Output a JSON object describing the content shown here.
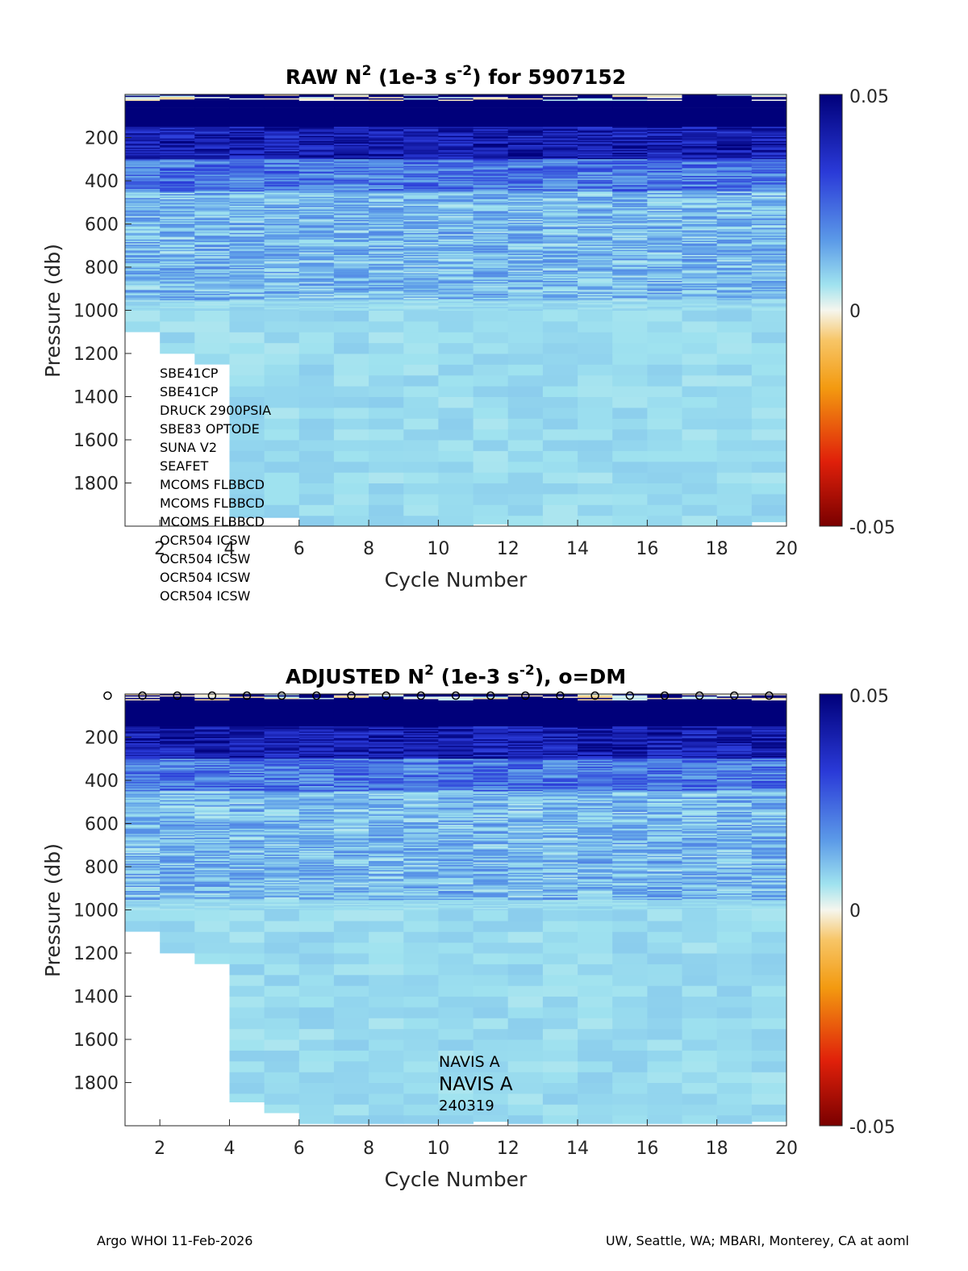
{
  "chart_data": [
    {
      "type": "heatmap",
      "id": "raw",
      "title_parts": [
        "RAW N",
        "2",
        " (1e-3 s",
        "-2",
        ") for 5907152"
      ],
      "xlabel": "Cycle Number",
      "ylabel": "Pressure (db)",
      "xlim": [
        1,
        20
      ],
      "ylim": [
        0,
        2000
      ],
      "x_ticks": [
        2,
        4,
        6,
        8,
        10,
        12,
        14,
        16,
        18,
        20
      ],
      "x_tick_labels": [
        "2",
        "4",
        "6",
        "8",
        "10",
        "12",
        "14",
        "16",
        "18",
        "20"
      ],
      "y_ticks": [
        200,
        400,
        600,
        800,
        1000,
        1200,
        1400,
        1600,
        1800
      ],
      "y_tick_labels": [
        "200",
        "400",
        "600",
        "800",
        "1000",
        "1200",
        "1400",
        "1600",
        "1800"
      ],
      "max_pressure_by_cycle": [
        1100,
        1200,
        1250,
        1960,
        1960,
        2000,
        2000,
        2000,
        2000,
        2000,
        1990,
        2000,
        2000,
        2000,
        2000,
        2000,
        2000,
        2000,
        1980
      ],
      "colorbar": {
        "min": -0.05,
        "max": 0.05,
        "tick_labels": [
          "0.05",
          "0",
          "-0.05"
        ]
      },
      "sensor_list": [
        "SBE41CP",
        "SBE41CP",
        "DRUCK 2900PSIA",
        "SBE83 OPTODE",
        "SUNA V2",
        "SEAFET",
        "MCOMS FLBBCD",
        "MCOMS FLBBCD",
        "MCOMS FLBBCD",
        "OCR504 ICSW",
        "OCR504 ICSW",
        "OCR504 ICSW",
        "OCR504 ICSW"
      ]
    },
    {
      "type": "heatmap",
      "id": "adjusted",
      "title_parts": [
        "ADJUSTED N",
        "2",
        " (1e-3 s",
        "-2",
        "), o=DM"
      ],
      "xlabel": "Cycle Number",
      "ylabel": "Pressure (db)",
      "xlim": [
        1,
        20
      ],
      "ylim": [
        0,
        2000
      ],
      "x_ticks": [
        2,
        4,
        6,
        8,
        10,
        12,
        14,
        16,
        18,
        20
      ],
      "x_tick_labels": [
        "2",
        "4",
        "6",
        "8",
        "10",
        "12",
        "14",
        "16",
        "18",
        "20"
      ],
      "y_ticks": [
        200,
        400,
        600,
        800,
        1000,
        1200,
        1400,
        1600,
        1800
      ],
      "y_tick_labels": [
        "200",
        "400",
        "600",
        "800",
        "1000",
        "1200",
        "1400",
        "1600",
        "1800"
      ],
      "max_pressure_by_cycle": [
        1100,
        1200,
        1250,
        1890,
        1940,
        1990,
        1990,
        1990,
        1990,
        1990,
        1980,
        1990,
        1990,
        1990,
        1990,
        1990,
        1990,
        1990,
        1980
      ],
      "colorbar": {
        "min": -0.05,
        "max": 0.05,
        "tick_labels": [
          "0.05",
          "0",
          "-0.05"
        ]
      },
      "dm_marker_cycles": [
        1,
        2,
        3,
        4,
        5,
        6,
        7,
        8,
        9,
        10,
        11,
        12,
        13,
        14,
        15,
        16,
        17,
        18,
        19,
        20
      ],
      "dm_marker": "o",
      "platform_lines": [
        "NAVIS A",
        "NAVIS A",
        "240319"
      ]
    }
  ],
  "footer": {
    "left": "Argo WHOI 11-Feb-2026",
    "right": "UW, Seattle, WA; MBARI, Monterey, CA at aoml"
  }
}
